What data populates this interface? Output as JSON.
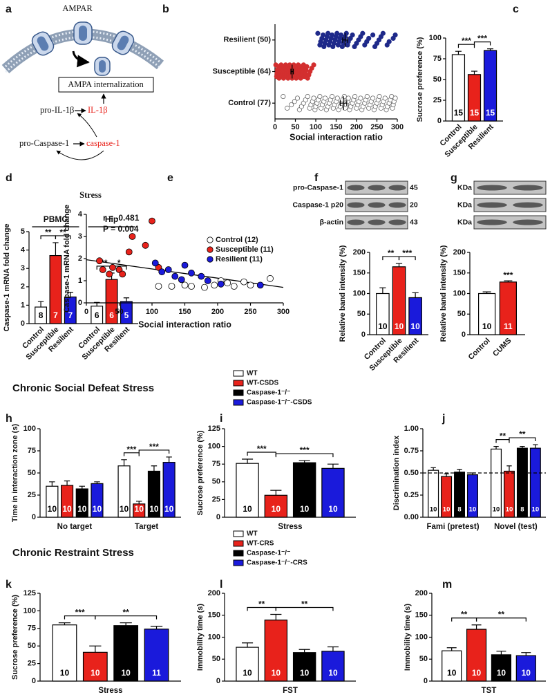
{
  "sections": [
    "Chronic Social Defeat Stress",
    "Chronic Restraint Stress"
  ],
  "chart_data": [
    {
      "type": "diagram",
      "label": "a",
      "receptor": "AMPAR",
      "process": "AMPA internalization",
      "precursor_1": "pro-IL-1β",
      "product_1": "IL-1β",
      "precursor_2": "pro-Caspase-1",
      "product_2": "caspase-1"
    },
    {
      "type": "strip",
      "label": "b",
      "xlabel": "Social interaction ratio",
      "categories": [
        "Resilient (50)",
        "Susceptible (64)",
        "Control (77)"
      ],
      "colors": [
        "#1f2a8a",
        "#d32f2f",
        "#ffffff"
      ],
      "values": [
        [
          105,
          110,
          112,
          115,
          118,
          120,
          122,
          125,
          128,
          130,
          132,
          135,
          138,
          140,
          142,
          145,
          148,
          150,
          152,
          155,
          158,
          160,
          162,
          165,
          168,
          170,
          172,
          175,
          178,
          180,
          185,
          190,
          195,
          200,
          205,
          210,
          215,
          220,
          225,
          230,
          240,
          245,
          250,
          255,
          260,
          265,
          275,
          280,
          290,
          295
        ],
        [
          2,
          4,
          5,
          6,
          8,
          10,
          11,
          12,
          14,
          15,
          16,
          18,
          19,
          20,
          21,
          22,
          24,
          25,
          26,
          27,
          28,
          30,
          31,
          32,
          33,
          34,
          35,
          36,
          37,
          38,
          40,
          41,
          42,
          43,
          44,
          45,
          46,
          47,
          48,
          50,
          51,
          52,
          53,
          55,
          56,
          57,
          58,
          60,
          61,
          62,
          63,
          65,
          66,
          68,
          70,
          72,
          74,
          76,
          78,
          80,
          83,
          86,
          90,
          95
        ],
        [
          20,
          30,
          40,
          48,
          55,
          60,
          65,
          70,
          75,
          80,
          85,
          88,
          92,
          95,
          98,
          100,
          103,
          106,
          110,
          113,
          116,
          120,
          123,
          126,
          130,
          133,
          136,
          140,
          143,
          146,
          150,
          153,
          156,
          160,
          163,
          166,
          170,
          172,
          175,
          178,
          180,
          183,
          186,
          190,
          193,
          196,
          200,
          203,
          206,
          210,
          213,
          216,
          220,
          223,
          226,
          230,
          233,
          236,
          240,
          243,
          246,
          250,
          253,
          256,
          260,
          263,
          266,
          270,
          273,
          276,
          280,
          283,
          286,
          288,
          290,
          292,
          295
        ]
      ],
      "means": [
        172,
        42,
        168
      ],
      "errors": [
        6,
        3,
        8
      ],
      "xlim": [
        0,
        300
      ],
      "xticks": [
        0,
        50,
        100,
        150,
        200,
        250,
        300
      ]
    },
    {
      "type": "bar",
      "label": "c",
      "ylabel": "Sucrose preference (%)",
      "ylim": [
        0,
        100
      ],
      "yticks": [
        0,
        25,
        50,
        75,
        100
      ],
      "colors": [
        "#ffffff",
        "#e8221b",
        "#1a1adb"
      ],
      "groups": [
        {
          "categories": [
            "Control",
            "Susceptible",
            "Resilient"
          ],
          "values": [
            80,
            56,
            85
          ],
          "errors": [
            4,
            4,
            2
          ],
          "n": [
            15,
            15,
            15
          ]
        }
      ],
      "brackets": [
        {
          "from": [
            0,
            0
          ],
          "to": [
            0,
            1
          ],
          "label": "***"
        },
        {
          "from": [
            0,
            1
          ],
          "to": [
            0,
            2
          ],
          "label": "***"
        }
      ]
    },
    {
      "type": "bar",
      "label": "d",
      "title": "Stress",
      "ylabel": "Caspase-1 mRNA fold change",
      "ylim": [
        0,
        5
      ],
      "yticks": [
        0,
        1,
        2,
        3,
        4,
        5
      ],
      "colors": [
        "#ffffff",
        "#e8221b",
        "#1a1adb"
      ],
      "groups": [
        {
          "name": "PBMC",
          "categories": [
            "Control",
            "Susceptible",
            "Resilient"
          ],
          "values": [
            0.9,
            3.7,
            1.45
          ],
          "errors": [
            0.3,
            0.7,
            0.25
          ],
          "n": [
            8,
            7,
            7
          ]
        },
        {
          "name": "Hip",
          "categories": [
            "Control",
            "Susceptible",
            "Resilient"
          ],
          "values": [
            0.95,
            2.4,
            1.2
          ],
          "errors": [
            0.2,
            0.35,
            0.2
          ],
          "n": [
            6,
            6,
            5
          ]
        }
      ],
      "brackets": [
        {
          "from": [
            0,
            0
          ],
          "to": [
            0,
            1
          ],
          "label": "**"
        },
        {
          "from": [
            0,
            1
          ],
          "to": [
            0,
            2
          ],
          "label": "**"
        },
        {
          "from": [
            1,
            0
          ],
          "to": [
            1,
            1
          ],
          "label": "**"
        },
        {
          "from": [
            1,
            1
          ],
          "to": [
            1,
            2
          ],
          "label": "*"
        }
      ]
    },
    {
      "type": "scatter",
      "label": "e",
      "xlabel": "Social interaction ratio",
      "ylabel": "Caspase-1 mRNA fold change",
      "xlim": [
        0,
        300
      ],
      "xticks": [
        0,
        50,
        100,
        150,
        200,
        250,
        300
      ],
      "ylim": [
        0,
        4
      ],
      "yticks": [
        0,
        1,
        2,
        3,
        4
      ],
      "stats": [
        "r = -0.481",
        "P = 0.004"
      ],
      "series": [
        {
          "name": "Control (12)",
          "color": "#ffffff",
          "x": [
            110,
            130,
            150,
            160,
            180,
            195,
            205,
            215,
            225,
            240,
            250,
            280
          ],
          "y": [
            0.75,
            0.75,
            0.8,
            0.75,
            0.7,
            0.8,
            1.0,
            0.9,
            0.75,
            0.95,
            0.8,
            1.1
          ]
        },
        {
          "name": "Susceptible (11)",
          "color": "#e8221b",
          "x": [
            20,
            25,
            35,
            40,
            50,
            55,
            65,
            70,
            90,
            100,
            110
          ],
          "y": [
            1.9,
            1.5,
            1.3,
            1.6,
            1.5,
            1.3,
            2.3,
            3.0,
            2.6,
            3.7,
            1.6
          ]
        },
        {
          "name": "Resilient (11)",
          "color": "#1a1adb",
          "x": [
            105,
            115,
            125,
            135,
            145,
            150,
            160,
            175,
            185,
            205,
            265
          ],
          "y": [
            1.8,
            1.4,
            1.5,
            1.2,
            1.05,
            1.7,
            1.35,
            1.2,
            1.0,
            0.85,
            0.8
          ]
        }
      ],
      "fit": {
        "x": [
          0,
          300
        ],
        "y": [
          1.95,
          0.7
        ]
      }
    },
    {
      "type": "bar",
      "label": "f",
      "blot": {
        "rows": [
          {
            "name": "pro-Caspase-1",
            "kda": 45
          },
          {
            "name": "Caspase-1 p20",
            "kda": 20
          },
          {
            "name": "β-actin",
            "kda": 43
          }
        ]
      },
      "ylabel": "Relative band intensity (%)",
      "ylim": [
        0,
        200
      ],
      "yticks": [
        0,
        50,
        100,
        150,
        200
      ],
      "colors": [
        "#ffffff",
        "#e8221b",
        "#1a1adb"
      ],
      "groups": [
        {
          "categories": [
            "Control",
            "Susceptible",
            "Resilient"
          ],
          "values": [
            100,
            165,
            90
          ],
          "errors": [
            14,
            8,
            12
          ],
          "n": [
            10,
            10,
            10
          ]
        }
      ],
      "brackets": [
        {
          "from": [
            0,
            0
          ],
          "to": [
            0,
            1
          ],
          "label": "**"
        },
        {
          "from": [
            0,
            1
          ],
          "to": [
            0,
            2
          ],
          "label": "***"
        }
      ]
    },
    {
      "type": "bar",
      "label": "g",
      "blot": {
        "rows": [
          {
            "name": "KDa"
          },
          {
            "name": "KDa"
          },
          {
            "name": "KDa"
          }
        ]
      },
      "ylabel": "Relative band intensity (%)",
      "ylim": [
        0,
        200
      ],
      "yticks": [
        0,
        50,
        100,
        150,
        200
      ],
      "colors": [
        "#ffffff",
        "#e8221b"
      ],
      "groups": [
        {
          "categories": [
            "Control",
            "CUMS"
          ],
          "values": [
            100,
            128
          ],
          "errors": [
            4,
            3
          ],
          "n": [
            10,
            11
          ]
        }
      ],
      "brackets": [
        {
          "from": [
            0,
            1
          ],
          "to": [
            0,
            1
          ],
          "label": "***"
        }
      ]
    },
    {
      "type": "bar",
      "label": "h",
      "ylabel": "Time in interaction zone (s)",
      "ylim": [
        0,
        100
      ],
      "yticks": [
        0,
        25,
        50,
        75,
        100
      ],
      "colors": [
        "#ffffff",
        "#e8221b",
        "#000000",
        "#1a1adb"
      ],
      "groups": [
        {
          "name": "No target",
          "values": [
            35,
            36,
            32,
            38
          ],
          "errors": [
            5,
            5,
            3,
            2
          ],
          "n": [
            10,
            10,
            10,
            10
          ]
        },
        {
          "name": "Target",
          "values": [
            58,
            15,
            52,
            62
          ],
          "errors": [
            7,
            3,
            6,
            6
          ],
          "n": [
            10,
            10,
            10,
            10
          ]
        }
      ],
      "brackets": [
        {
          "from": [
            1,
            0
          ],
          "to": [
            1,
            1
          ],
          "label": "***"
        },
        {
          "from": [
            1,
            1
          ],
          "to": [
            1,
            3
          ],
          "label": "***"
        }
      ]
    },
    {
      "type": "bar",
      "label": "i",
      "xlabel": "Stress",
      "ylabel": "Sucrose preference (%)",
      "ylim": [
        0,
        125
      ],
      "yticks": [
        0,
        25,
        50,
        75,
        100,
        125
      ],
      "colors": [
        "#ffffff",
        "#e8221b",
        "#000000",
        "#1a1adb"
      ],
      "legend": [
        "WT",
        "WT-CSDS",
        "Caspase-1⁻/⁻",
        "Caspase-1⁻/⁻-CSDS"
      ],
      "groups": [
        {
          "values": [
            76,
            31,
            77,
            69
          ],
          "errors": [
            6,
            7,
            3,
            6
          ],
          "n": [
            10,
            10,
            10,
            10
          ]
        }
      ],
      "brackets": [
        {
          "from": [
            0,
            0
          ],
          "to": [
            0,
            1
          ],
          "label": "***"
        },
        {
          "from": [
            0,
            1
          ],
          "to": [
            0,
            3
          ],
          "label": "***"
        }
      ]
    },
    {
      "type": "bar",
      "label": "j",
      "ylabel": "Discrimination index",
      "ylim": [
        0,
        1
      ],
      "yticks": [
        {
          "value": 0,
          "label": "0.00"
        },
        0.25,
        {
          "value": 0.5,
          "label": "0.50"
        },
        0.75,
        {
          "value": 1,
          "label": "1.00"
        }
      ],
      "reference_line": 0.5,
      "colors": [
        "#ffffff",
        "#e8221b",
        "#000000",
        "#1a1adb"
      ],
      "groups": [
        {
          "name": "Fami (pretest)",
          "values": [
            0.53,
            0.46,
            0.51,
            0.48
          ],
          "errors": [
            0.03,
            0.03,
            0.03,
            0.02
          ],
          "n": [
            10,
            10,
            8,
            10
          ]
        },
        {
          "name": "Novel (test)",
          "values": [
            0.77,
            0.52,
            0.78,
            0.78
          ],
          "errors": [
            0.03,
            0.06,
            0.02,
            0.04
          ],
          "n": [
            10,
            10,
            8,
            10
          ]
        }
      ],
      "brackets": [
        {
          "from": [
            1,
            0
          ],
          "to": [
            1,
            1
          ],
          "label": "**"
        },
        {
          "from": [
            1,
            1
          ],
          "to": [
            1,
            3
          ],
          "label": "**"
        }
      ]
    },
    {
      "type": "bar",
      "label": "k",
      "xlabel": "Stress",
      "ylabel": "Sucrose preference (%)",
      "ylim": [
        0,
        125
      ],
      "yticks": [
        0,
        25,
        50,
        75,
        100,
        125
      ],
      "colors": [
        "#ffffff",
        "#e8221b",
        "#000000",
        "#1a1adb"
      ],
      "groups": [
        {
          "values": [
            80,
            41,
            79,
            74
          ],
          "errors": [
            3,
            9,
            4,
            4
          ],
          "n": [
            10,
            10,
            10,
            11
          ]
        }
      ],
      "brackets": [
        {
          "from": [
            0,
            0
          ],
          "to": [
            0,
            1
          ],
          "label": "***"
        },
        {
          "from": [
            0,
            1
          ],
          "to": [
            0,
            3
          ],
          "label": "**"
        }
      ]
    },
    {
      "type": "bar",
      "label": "l",
      "xlabel": "FST",
      "ylabel": "Immobility time (s)",
      "ylim": [
        0,
        200
      ],
      "yticks": [
        0,
        50,
        100,
        150,
        200
      ],
      "colors": [
        "#ffffff",
        "#e8221b",
        "#000000",
        "#1a1adb"
      ],
      "legend": [
        "WT",
        "WT-CRS",
        "Caspase-1⁻/⁻",
        "Caspase-1⁻/⁻-CRS"
      ],
      "groups": [
        {
          "values": [
            77,
            139,
            65,
            68
          ],
          "errors": [
            10,
            13,
            7,
            10
          ],
          "n": [
            10,
            10,
            10,
            10
          ]
        }
      ],
      "brackets": [
        {
          "from": [
            0,
            0
          ],
          "to": [
            0,
            1
          ],
          "label": "**"
        },
        {
          "from": [
            0,
            1
          ],
          "to": [
            0,
            3
          ],
          "label": "**"
        }
      ]
    },
    {
      "type": "bar",
      "label": "m",
      "xlabel": "TST",
      "ylabel": "Immobility time (s)",
      "ylim": [
        0,
        200
      ],
      "yticks": [
        0,
        50,
        100,
        150,
        200
      ],
      "colors": [
        "#ffffff",
        "#e8221b",
        "#000000",
        "#1a1adb"
      ],
      "groups": [
        {
          "values": [
            69,
            118,
            60,
            58
          ],
          "errors": [
            7,
            10,
            8,
            7
          ],
          "n": [
            10,
            10,
            10,
            10
          ]
        }
      ],
      "brackets": [
        {
          "from": [
            0,
            0
          ],
          "to": [
            0,
            1
          ],
          "label": "**"
        },
        {
          "from": [
            0,
            1
          ],
          "to": [
            0,
            3
          ],
          "label": "**"
        }
      ]
    }
  ]
}
